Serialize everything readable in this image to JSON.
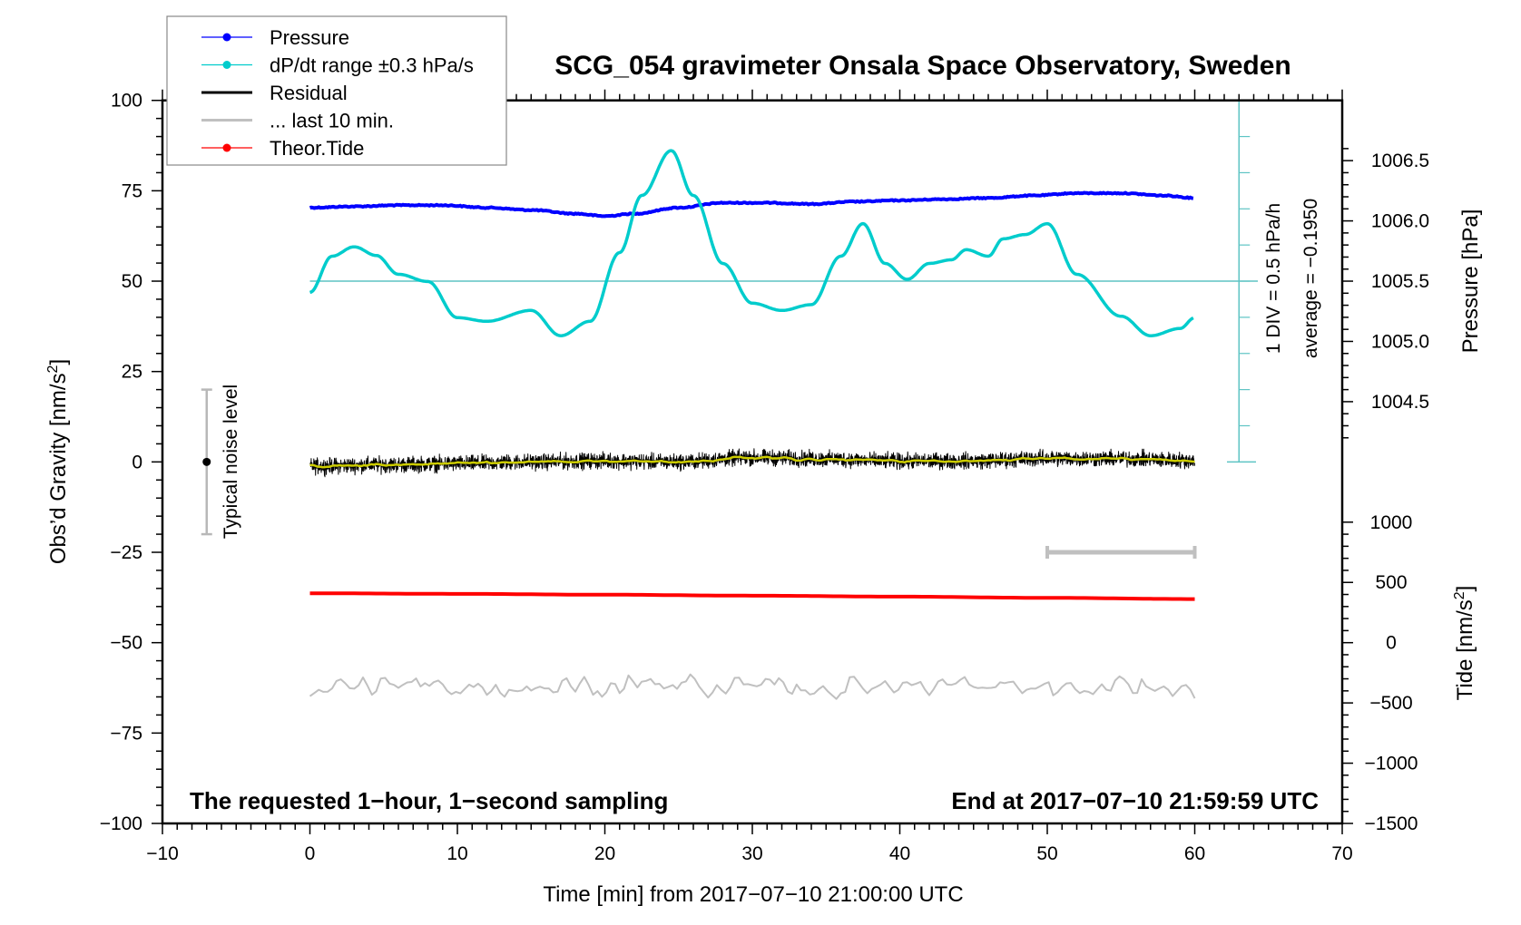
{
  "chart_data": {
    "type": "line",
    "title": "SCG_054 gravimeter Onsala Space Observatory, Sweden",
    "xlabel": "Time [min] from 2017−07−10 21:00:00 UTC",
    "ylabel": "Obs’d Gravity [nm/s",
    "ylabel_sup": "2",
    "ylabel_end": "]",
    "y2label": "Pressure [hPa]",
    "y3label": "Tide [nm/s",
    "y3label_sup": "2",
    "y3label_end": "]",
    "xlim": [
      -10,
      70
    ],
    "ylim": [
      -100,
      100
    ],
    "pressure_lim": [
      1004.5,
      1006.5
    ],
    "tide_lim": [
      -1500,
      1000
    ],
    "x_ticks": [
      "−10",
      "0",
      "10",
      "20",
      "30",
      "40",
      "50",
      "60",
      "70"
    ],
    "x_tick_values": [
      -10,
      0,
      10,
      20,
      30,
      40,
      50,
      60,
      70
    ],
    "y_ticks": [
      "100",
      "75",
      "50",
      "25",
      "0",
      "−25",
      "−50",
      "−75",
      "−100"
    ],
    "y_tick_values": [
      100,
      75,
      50,
      25,
      0,
      -25,
      -50,
      -75,
      -100
    ],
    "pressure_ticks": [
      "1006.5",
      "1006.0",
      "1005.5",
      "1005.0",
      "1004.5"
    ],
    "pressure_tick_values": [
      1006.5,
      1006.0,
      1005.5,
      1005.0,
      1004.5
    ],
    "tide_ticks": [
      "1000",
      "500",
      "0",
      "−500",
      "−1000",
      "−1500"
    ],
    "tide_tick_values": [
      1000,
      500,
      0,
      -500,
      -1000,
      -1500
    ],
    "legend": [
      {
        "label": "Pressure",
        "color": "#0000ff",
        "marker": true
      },
      {
        "label": "dP/dt range ±0.3 hPa/s",
        "color": "#00cccc",
        "marker": true
      },
      {
        "label": "Residual",
        "color": "#000000",
        "marker": false
      },
      {
        "label": "... last 10 min.",
        "color": "#c0c0c0",
        "marker": false
      },
      {
        "label": "Theor.Tide",
        "color": "#ff0000",
        "marker": true
      }
    ],
    "legend_position": "top-left",
    "annotations": {
      "div_note": "1 DIV = 0.5 hPa/h",
      "average_note": "average = −0.1950",
      "noise_label": "Typical noise level",
      "left_note": "The requested 1−hour, 1−second sampling",
      "right_note": "End at 2017−07−10 21:59:59 UTC"
    },
    "series": [
      {
        "name": "Pressure",
        "unit": "hPa",
        "color": "#0000ff",
        "x": [
          0,
          3,
          6,
          9,
          12,
          15,
          18,
          20,
          22,
          25,
          28,
          31,
          34,
          37,
          40,
          43,
          46,
          49,
          52,
          55,
          58,
          60
        ],
        "y": [
          1006.11,
          1006.12,
          1006.13,
          1006.13,
          1006.11,
          1006.09,
          1006.06,
          1006.04,
          1006.06,
          1006.11,
          1006.15,
          1006.15,
          1006.14,
          1006.16,
          1006.17,
          1006.18,
          1006.19,
          1006.21,
          1006.23,
          1006.23,
          1006.21,
          1006.19
        ]
      },
      {
        "name": "dP/dt",
        "unit": "hPa/h",
        "color": "#00cccc",
        "average": -0.195,
        "div": 0.5,
        "x": [
          0,
          1.5,
          3,
          4.5,
          6,
          8,
          10,
          12,
          15,
          17,
          19,
          21,
          22.5,
          24.5,
          26,
          28,
          30,
          32,
          34,
          36,
          37.5,
          39,
          40.5,
          42,
          43.5,
          44.5,
          46,
          47,
          48.5,
          50,
          52,
          55,
          57,
          59,
          60
        ],
        "y": [
          -0.35,
          0.15,
          0.28,
          0.16,
          -0.1,
          -0.2,
          -0.7,
          -0.75,
          -0.6,
          -0.95,
          -0.75,
          0.2,
          0.99,
          1.61,
          0.99,
          0.05,
          -0.5,
          -0.6,
          -0.52,
          0.15,
          0.6,
          0.05,
          -0.17,
          0.05,
          0.1,
          0.24,
          0.15,
          0.39,
          0.45,
          0.6,
          -0.1,
          -0.68,
          -0.95,
          -0.85,
          -0.7
        ]
      },
      {
        "name": "Residual",
        "unit": "nm/s2",
        "color": "#000000",
        "smooth_color": "#cccc00",
        "noise_amplitude": 1.6,
        "x": [
          0,
          5,
          10,
          15,
          20,
          25,
          30,
          35,
          40,
          45,
          50,
          55,
          60
        ],
        "y": [
          -1.2,
          -0.8,
          -0.5,
          0,
          0.3,
          0,
          1.2,
          0.8,
          0.2,
          0.3,
          1.0,
          0.9,
          0.4
        ]
      },
      {
        "name": "... last 10 min.",
        "unit": "nm/s2",
        "color": "#c0c0c0",
        "offset": -62,
        "amplitude": 4.5,
        "source_range": [
          50,
          60
        ]
      },
      {
        "name": "Theor.Tide",
        "unit": "nm/s2",
        "color": "#ff0000",
        "x": [
          0,
          10,
          20,
          30,
          40,
          50,
          60
        ],
        "y": [
          410,
          405,
          398,
          390,
          382,
          372,
          362
        ]
      }
    ],
    "noise_bar": {
      "x": -7,
      "low": -20,
      "high": 20,
      "center": 0
    },
    "last10_bar": {
      "x_start": 50,
      "x_end": 60,
      "tide_level": 750
    }
  }
}
